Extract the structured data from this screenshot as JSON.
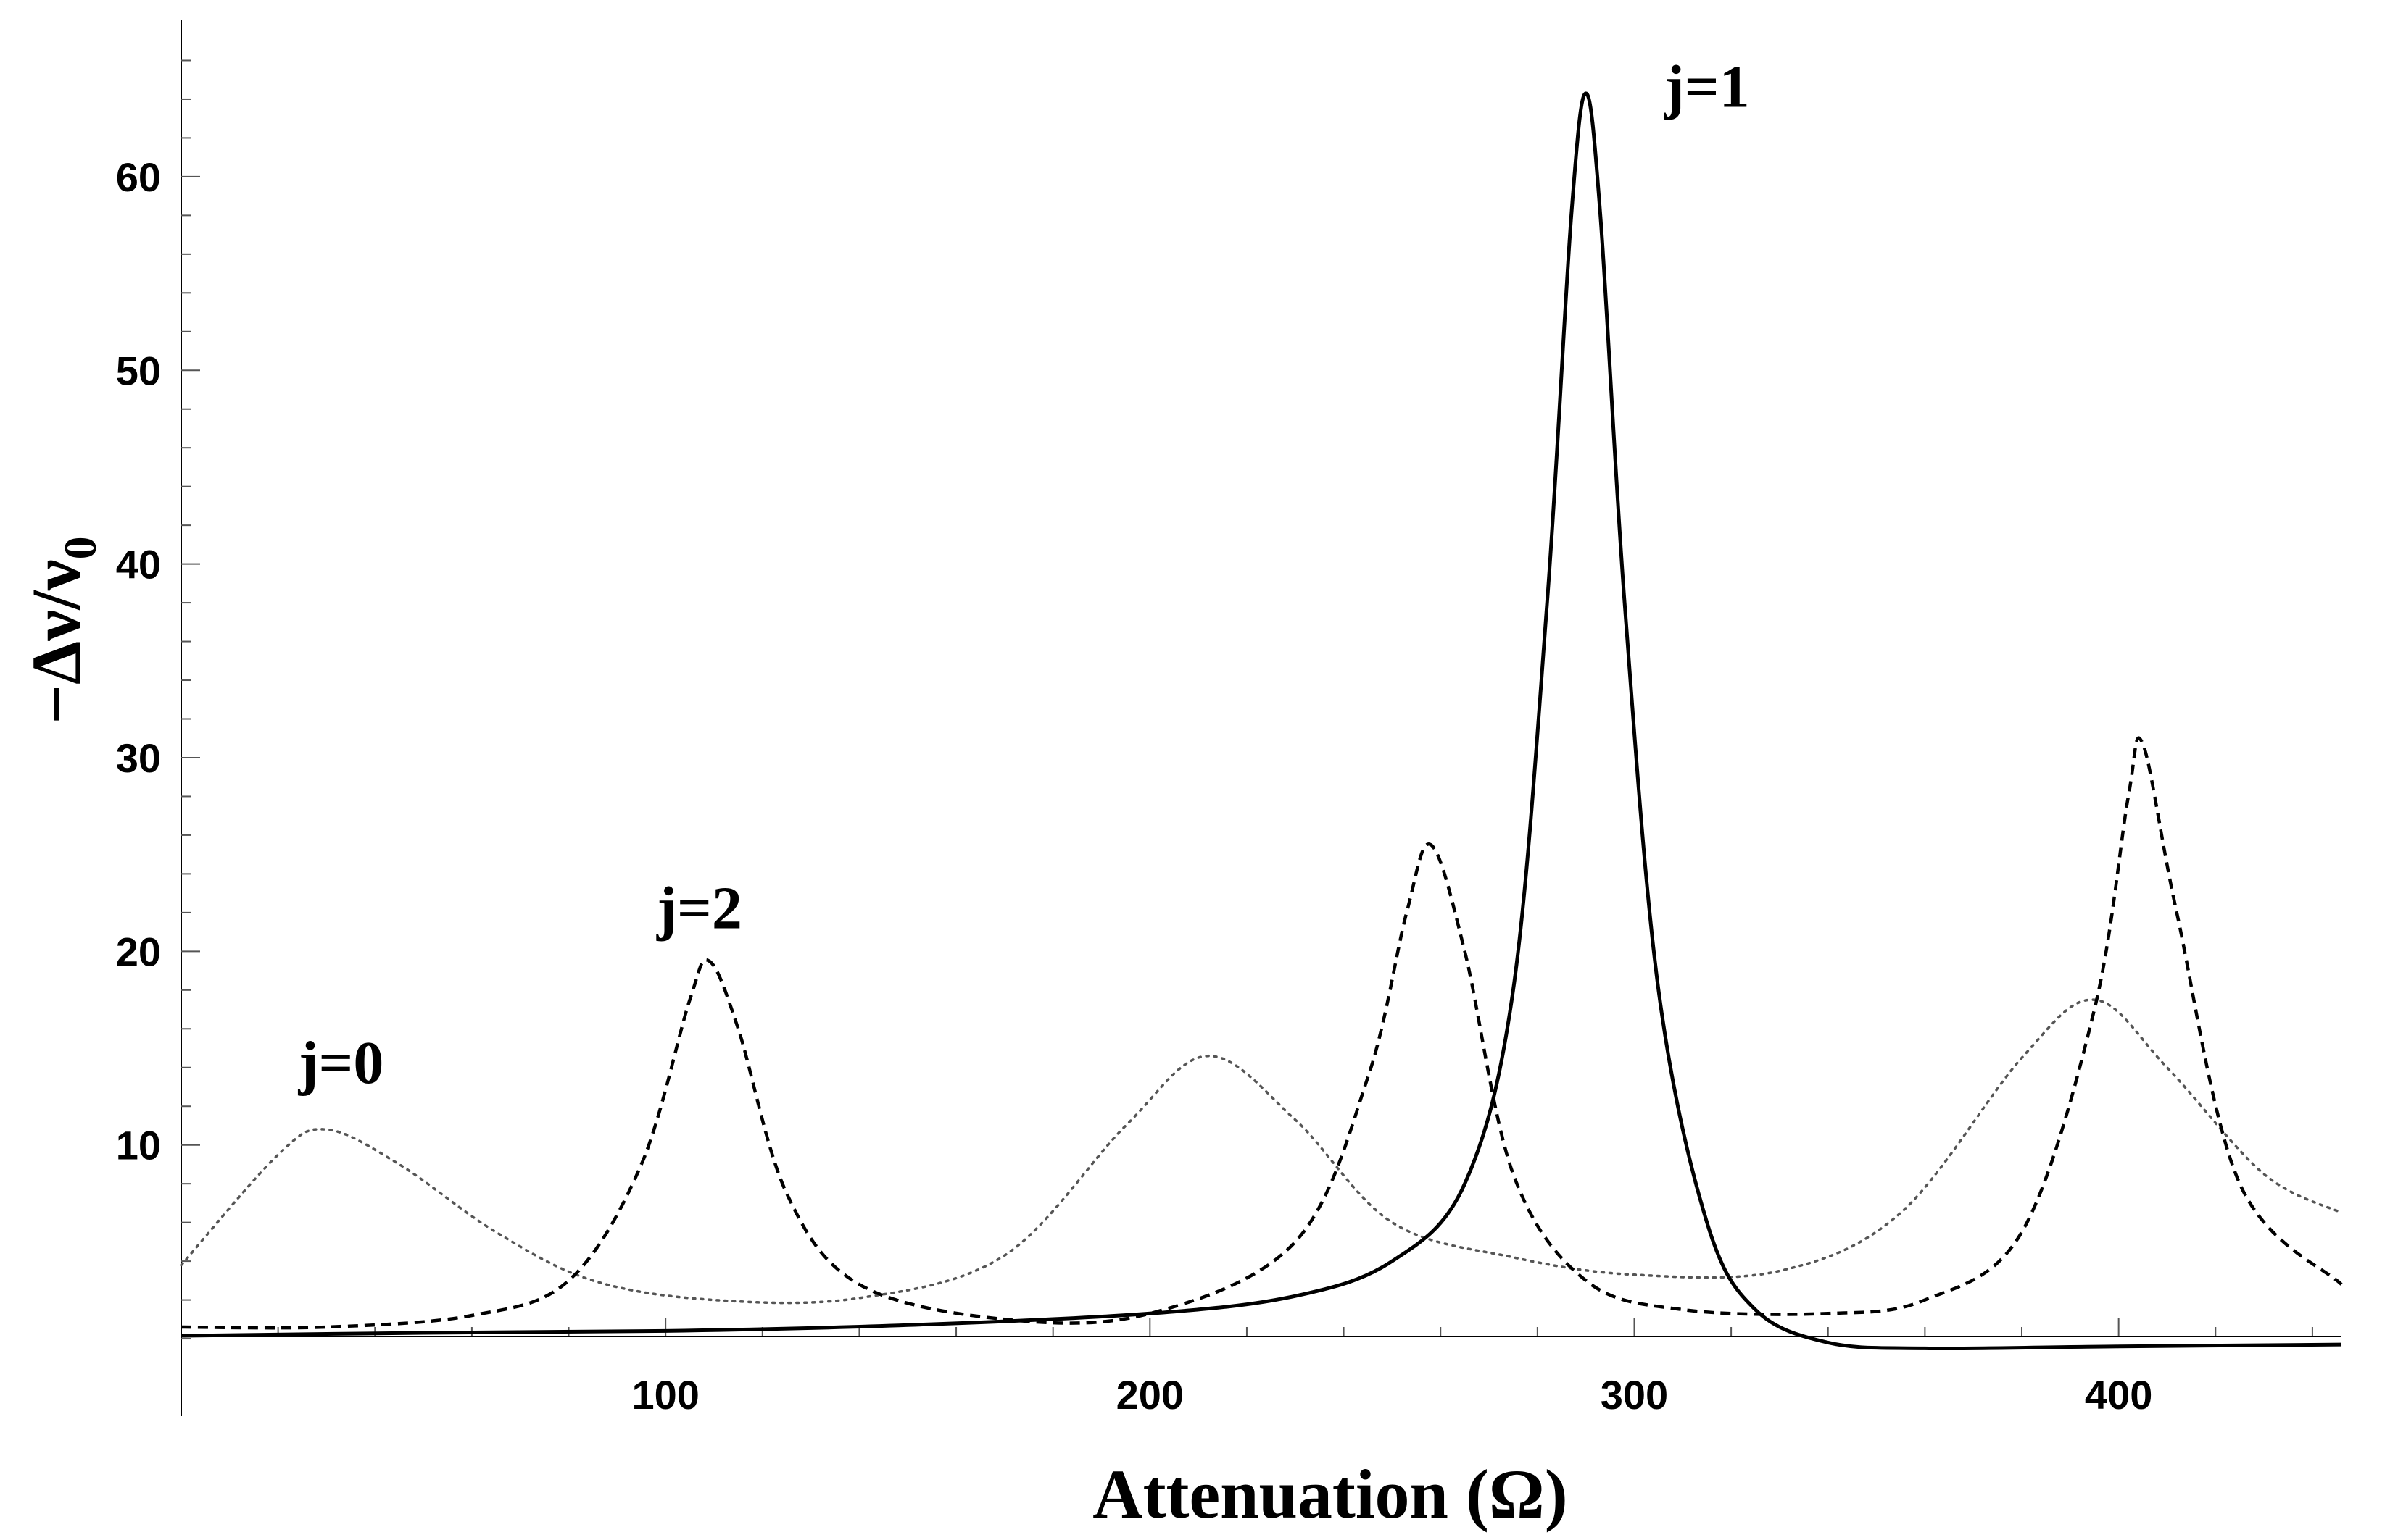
{
  "chart_data": {
    "type": "line",
    "title": "",
    "xlabel": "Attenuation (Ω)",
    "ylabel": "−Δν/ν",
    "ylabel_subscript": "0",
    "xlim": [
      0,
      446
    ],
    "ylim": [
      -4,
      68
    ],
    "x_ticks": [
      100,
      200,
      300,
      400
    ],
    "y_ticks": [
      10,
      20,
      30,
      40,
      50,
      60
    ],
    "grid": false,
    "series": [
      {
        "name": "j=0",
        "style": "dotted",
        "color": "#555555",
        "x": [
          0,
          20,
          30,
          45,
          65,
          85,
          110,
          140,
          170,
          195,
          212,
          230,
          250,
          275,
          300,
          330,
          355,
          380,
          395,
          410,
          430,
          446
        ],
        "y": [
          3.8,
          9.5,
          10.8,
          9.0,
          5.5,
          3.0,
          2.0,
          2.1,
          4.3,
          11.0,
          14.6,
          11.3,
          6.0,
          4.2,
          3.3,
          3.5,
          6.5,
          14.5,
          17.5,
          14.0,
          8.5,
          6.5
        ]
      },
      {
        "name": "j=2",
        "style": "dashed",
        "color": "#000000",
        "x": [
          0,
          30,
          60,
          80,
          95,
          105,
          109,
          115,
          125,
          140,
          170,
          200,
          230,
          245,
          253,
          258,
          265,
          275,
          290,
          310,
          340,
          360,
          380,
          395,
          402,
          405,
          412,
          425,
          446
        ],
        "y": [
          0.6,
          0.6,
          1.2,
          3.0,
          9.0,
          17.5,
          19.5,
          16.0,
          7.5,
          2.8,
          1.0,
          1.3,
          5.0,
          13.5,
          22.0,
          25.5,
          20.0,
          8.5,
          3.0,
          1.5,
          1.3,
          2.0,
          5.5,
          17.0,
          28.0,
          30.7,
          22.0,
          8.0,
          2.8
        ]
      },
      {
        "name": "j=1",
        "style": "solid",
        "color": "#000000",
        "x": [
          0,
          50,
          100,
          150,
          200,
          230,
          250,
          265,
          275,
          282,
          287,
          290,
          293,
          298,
          305,
          315,
          325,
          340,
          360,
          400,
          446
        ],
        "y": [
          0.15,
          0.3,
          0.4,
          0.7,
          1.3,
          2.2,
          4.0,
          8.0,
          18.0,
          38.0,
          58.0,
          64.3,
          58.0,
          38.0,
          18.0,
          6.0,
          1.5,
          -0.2,
          -0.5,
          -0.4,
          -0.3
        ]
      }
    ],
    "annotations": [
      {
        "text": "j=0",
        "x": 33,
        "y": 13.2
      },
      {
        "text": "j=2",
        "x": 107,
        "y": 21.2
      },
      {
        "text": "j=1",
        "x": 315,
        "y": 63.6
      }
    ]
  }
}
